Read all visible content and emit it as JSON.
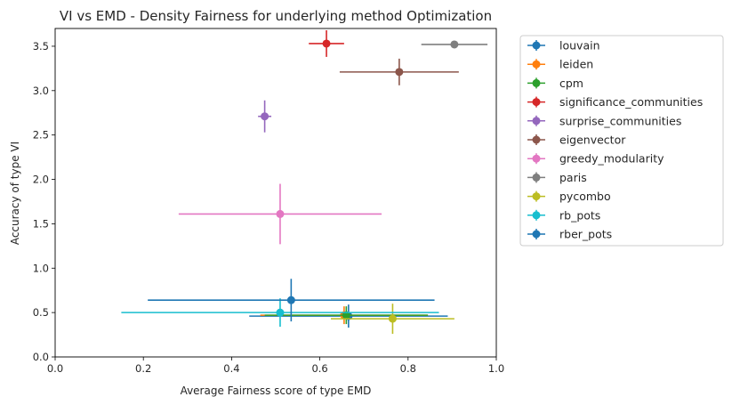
{
  "chart_data": {
    "type": "scatter",
    "title": "VI vs EMD - Density Fairness for underlying method Optimization",
    "xlabel": "Average Fairness score of type EMD",
    "ylabel": "Accuracy of type VI",
    "xlim": [
      0.0,
      1.0
    ],
    "ylim": [
      0.0,
      3.7
    ],
    "xticks": [
      "0.0",
      "0.2",
      "0.4",
      "0.6",
      "0.8",
      "1.0"
    ],
    "yticks": [
      "0.0",
      "0.5",
      "1.0",
      "1.5",
      "2.0",
      "2.5",
      "3.0",
      "3.5"
    ],
    "grid": false,
    "legend_position": "outside-right",
    "series": [
      {
        "name": "louvain",
        "color": "#1f77b4",
        "x": 0.665,
        "y": 0.46,
        "xerr": 0.225,
        "yerr": 0.13
      },
      {
        "name": "leiden",
        "color": "#ff7f0e",
        "x": 0.655,
        "y": 0.47,
        "xerr": 0.19,
        "yerr": 0.1
      },
      {
        "name": "cpm",
        "color": "#2ca02c",
        "x": 0.66,
        "y": 0.47,
        "xerr": 0.185,
        "yerr": 0.1
      },
      {
        "name": "significance_communities",
        "color": "#d62728",
        "x": 0.615,
        "y": 3.53,
        "xerr": 0.04,
        "yerr": 0.15
      },
      {
        "name": "surprise_communities",
        "color": "#9467bd",
        "x": 0.475,
        "y": 2.71,
        "xerr": 0.015,
        "yerr": 0.18
      },
      {
        "name": "eigenvector",
        "color": "#8c564b",
        "x": 0.78,
        "y": 3.21,
        "xerr": 0.135,
        "yerr": 0.15
      },
      {
        "name": "greedy_modularity",
        "color": "#e377c2",
        "x": 0.51,
        "y": 1.61,
        "xerr": 0.23,
        "yerr": 0.34
      },
      {
        "name": "paris",
        "color": "#7f7f7f",
        "x": 0.905,
        "y": 3.52,
        "xerr": 0.075,
        "yerr": 0.03
      },
      {
        "name": "pycombo",
        "color": "#bcbd22",
        "x": 0.765,
        "y": 0.43,
        "xerr": 0.14,
        "yerr": 0.17
      },
      {
        "name": "rb_pots",
        "color": "#17becf",
        "x": 0.51,
        "y": 0.5,
        "xerr": 0.36,
        "yerr": 0.16
      },
      {
        "name": "rber_pots",
        "color": "#1f77b4",
        "x": 0.535,
        "y": 0.64,
        "xerr": 0.325,
        "yerr": 0.24
      }
    ]
  }
}
